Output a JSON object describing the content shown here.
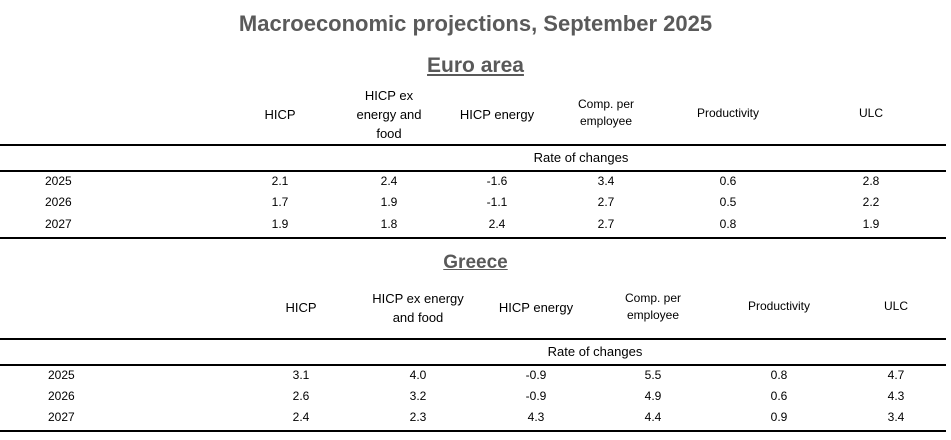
{
  "title": "Macroeconomic projections, September 2025",
  "euro_area": {
    "title": "Euro area",
    "headers": [
      "HICP",
      "HICP ex energy and food",
      "HICP energy",
      "Comp. per employee",
      "Productivity",
      "ULC"
    ],
    "rate_label": "Rate of changes",
    "rows": [
      {
        "year": "2025",
        "values": [
          "2.1",
          "2.4",
          "-1.6",
          "3.4",
          "0.6",
          "2.8"
        ]
      },
      {
        "year": "2026",
        "values": [
          "1.7",
          "1.9",
          "-1.1",
          "2.7",
          "0.5",
          "2.2"
        ]
      },
      {
        "year": "2027",
        "values": [
          "1.9",
          "1.8",
          "2.4",
          "2.7",
          "0.8",
          "1.9"
        ]
      }
    ]
  },
  "greece": {
    "title": "Greece",
    "headers": [
      "HICP",
      "HICP ex energy and food",
      "HICP energy",
      "Comp. per employee",
      "Productivity",
      "ULC"
    ],
    "rate_label": "Rate of changes",
    "rows": [
      {
        "year": "2025",
        "values": [
          "3.1",
          "4.0",
          "-0.9",
          "5.5",
          "0.8",
          "4.7"
        ]
      },
      {
        "year": "2026",
        "values": [
          "2.6",
          "3.2",
          "-0.9",
          "4.9",
          "0.6",
          "4.3"
        ]
      },
      {
        "year": "2027",
        "values": [
          "2.4",
          "2.3",
          "4.3",
          "4.4",
          "0.9",
          "3.4"
        ]
      }
    ]
  }
}
